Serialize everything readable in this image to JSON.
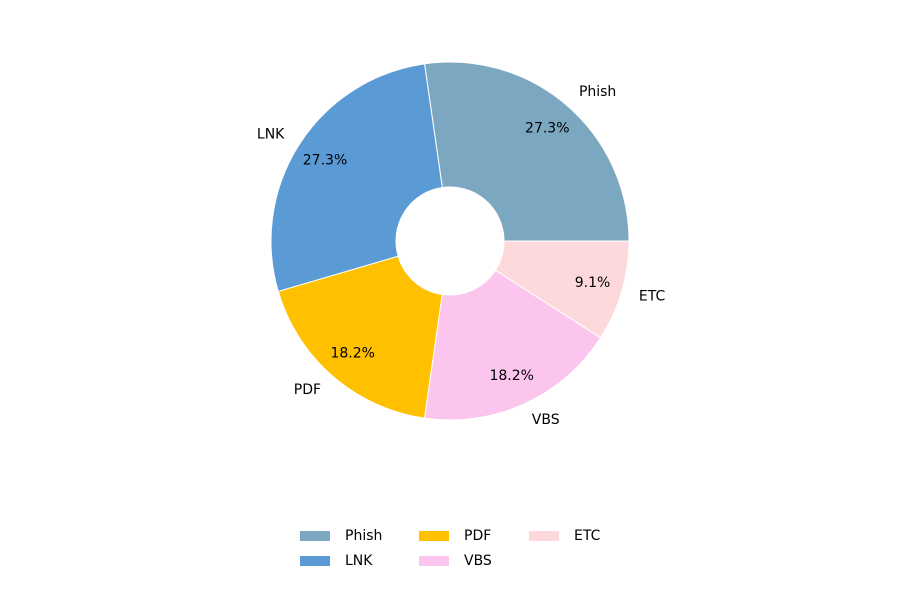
{
  "chart_data": {
    "type": "pie",
    "categories": [
      "Phish",
      "LNK",
      "PDF",
      "VBS",
      "ETC"
    ],
    "values": [
      27.3,
      27.3,
      18.2,
      18.2,
      9.1
    ],
    "value_labels": [
      "27.3%",
      "27.3%",
      "18.2%",
      "18.2%",
      "9.1%"
    ],
    "colors": [
      "#7ba7c1",
      "#5b9bd5",
      "#ffc000",
      "#fcc5ed",
      "#fed9dc"
    ],
    "legend": "lower center"
  }
}
